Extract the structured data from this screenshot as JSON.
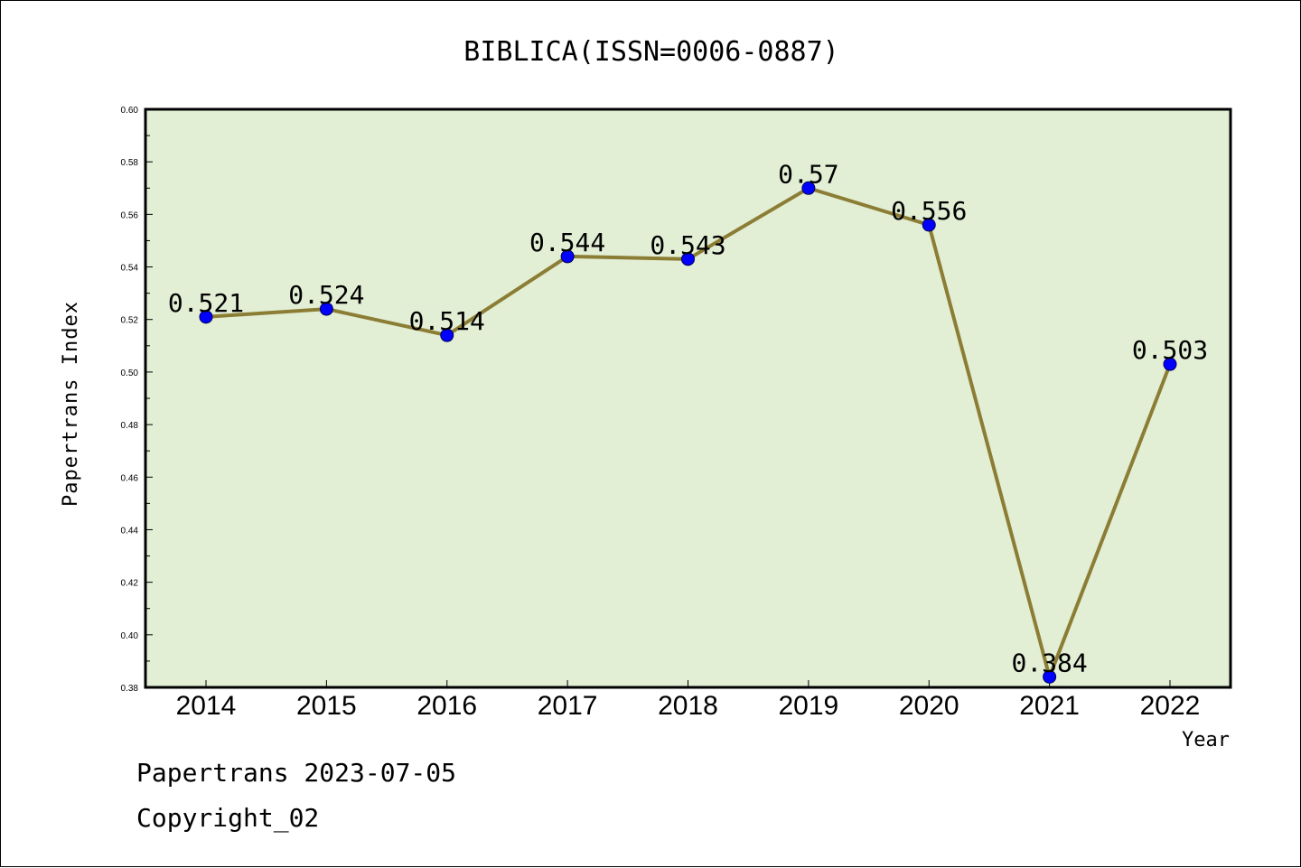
{
  "chart_data": {
    "type": "line",
    "title": "BIBLICA(ISSN=0006-0887)",
    "xlabel": "Year",
    "ylabel": "Papertrans Index",
    "categories": [
      "2014",
      "2015",
      "2016",
      "2017",
      "2018",
      "2019",
      "2020",
      "2021",
      "2022"
    ],
    "values": [
      0.521,
      0.524,
      0.514,
      0.544,
      0.543,
      0.57,
      0.556,
      0.384,
      0.503
    ],
    "data_labels": [
      "0.521",
      "0.524",
      "0.514",
      "0.544",
      "0.543",
      "0.57",
      "0.556",
      "0.384",
      "0.503"
    ],
    "ylim": [
      0.38,
      0.6
    ],
    "yticks": [
      "0.38",
      "0.40",
      "0.42",
      "0.44",
      "0.46",
      "0.48",
      "0.50",
      "0.52",
      "0.54",
      "0.56",
      "0.58",
      "0.60"
    ],
    "grid": false,
    "colors": {
      "line": "#8c7d35",
      "marker": "#0000ff",
      "plot_background": "#e2efd5",
      "axes": "#000000"
    }
  },
  "footer": {
    "line1": "Papertrans 2023-07-05",
    "line2": "Copyright_02"
  }
}
